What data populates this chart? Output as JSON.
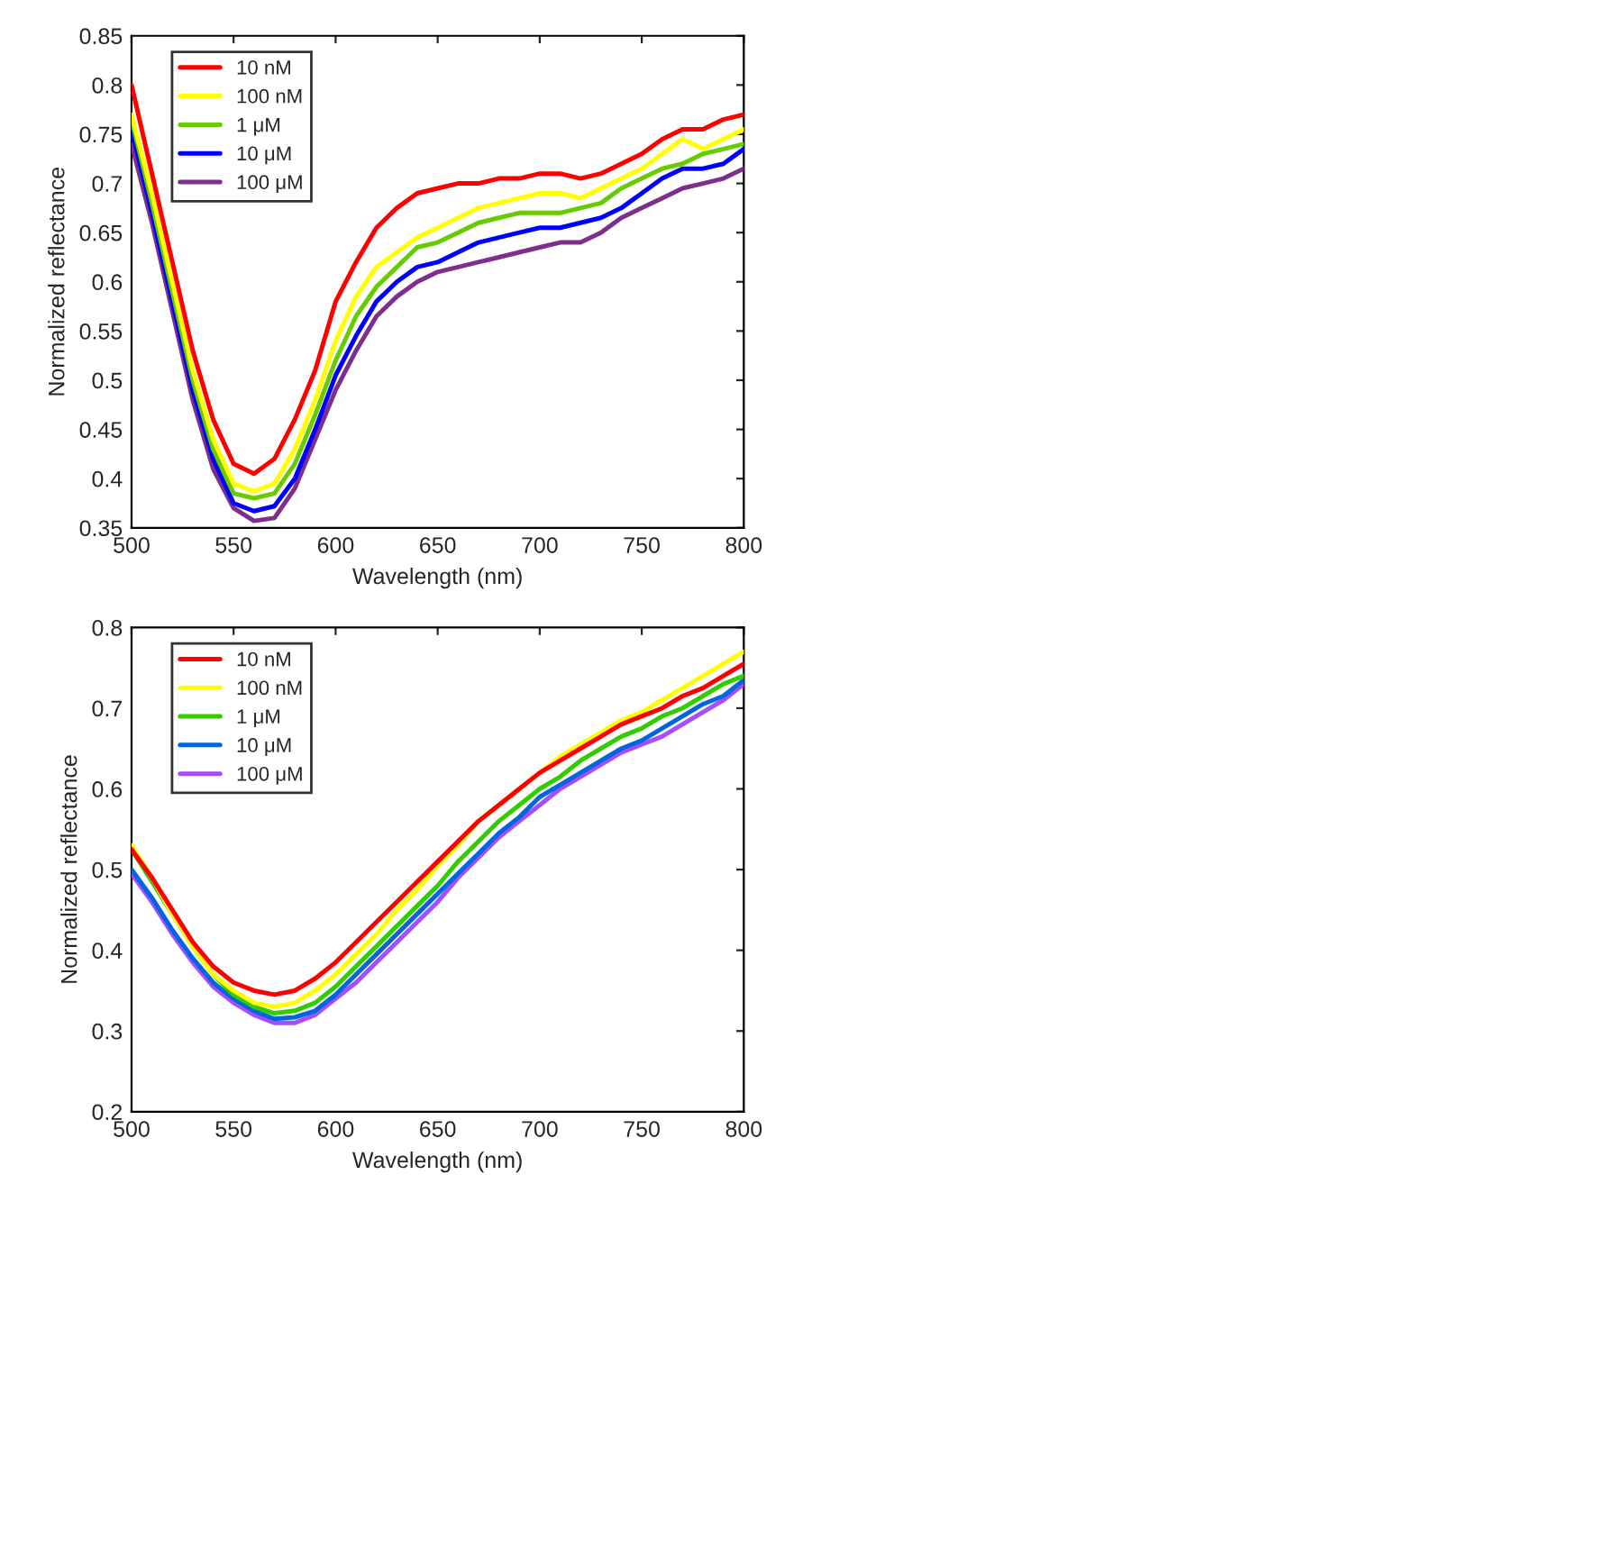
{
  "chart_data": [
    {
      "type": "line",
      "xlabel": "Wavelength (nm)",
      "ylabel": "Normalized reflectance",
      "xlim": [
        500,
        800
      ],
      "xticks": [
        500,
        550,
        600,
        650,
        700,
        750,
        800
      ],
      "ylim": [
        0.35,
        0.85
      ],
      "yticks": [
        0.35,
        0.4,
        0.45,
        0.5,
        0.55,
        0.6,
        0.65,
        0.7,
        0.75,
        0.8,
        0.85
      ],
      "legend": "top left",
      "grid": false,
      "x": [
        500,
        510,
        520,
        530,
        540,
        550,
        560,
        570,
        580,
        590,
        600,
        610,
        620,
        630,
        640,
        650,
        660,
        670,
        680,
        690,
        700,
        710,
        720,
        730,
        740,
        750,
        760,
        770,
        780,
        790,
        800
      ],
      "series": [
        {
          "name": "10 nM",
          "color": "#ff0000",
          "values": [
            0.8,
            0.71,
            0.62,
            0.53,
            0.46,
            0.415,
            0.405,
            0.42,
            0.46,
            0.51,
            0.58,
            0.62,
            0.655,
            0.675,
            0.69,
            0.695,
            0.7,
            0.7,
            0.705,
            0.705,
            0.71,
            0.71,
            0.705,
            0.71,
            0.72,
            0.73,
            0.745,
            0.755,
            0.755,
            0.765,
            0.77
          ]
        },
        {
          "name": "100 nM",
          "color": "#ffff00",
          "values": [
            0.77,
            0.69,
            0.6,
            0.51,
            0.44,
            0.395,
            0.387,
            0.395,
            0.43,
            0.48,
            0.54,
            0.585,
            0.615,
            0.63,
            0.645,
            0.655,
            0.665,
            0.675,
            0.68,
            0.685,
            0.69,
            0.69,
            0.685,
            0.695,
            0.705,
            0.715,
            0.73,
            0.745,
            0.735,
            0.745,
            0.755
          ]
        },
        {
          "name": "1 μM",
          "color": "#66cc00",
          "values": [
            0.765,
            0.68,
            0.59,
            0.5,
            0.43,
            0.385,
            0.38,
            0.385,
            0.415,
            0.465,
            0.52,
            0.565,
            0.595,
            0.615,
            0.635,
            0.64,
            0.65,
            0.66,
            0.665,
            0.67,
            0.67,
            0.67,
            0.675,
            0.68,
            0.695,
            0.705,
            0.715,
            0.72,
            0.73,
            0.735,
            0.74
          ]
        },
        {
          "name": "10 μM",
          "color": "#0000ff",
          "values": [
            0.755,
            0.67,
            0.58,
            0.49,
            0.42,
            0.375,
            0.367,
            0.372,
            0.4,
            0.45,
            0.505,
            0.545,
            0.58,
            0.6,
            0.615,
            0.62,
            0.63,
            0.64,
            0.645,
            0.65,
            0.655,
            0.655,
            0.66,
            0.665,
            0.675,
            0.69,
            0.705,
            0.715,
            0.715,
            0.72,
            0.735
          ]
        },
        {
          "name": "100 μM",
          "color": "#7e2f8e",
          "values": [
            0.74,
            0.66,
            0.57,
            0.48,
            0.41,
            0.37,
            0.357,
            0.36,
            0.39,
            0.44,
            0.49,
            0.53,
            0.565,
            0.585,
            0.6,
            0.61,
            0.615,
            0.62,
            0.625,
            0.63,
            0.635,
            0.64,
            0.64,
            0.65,
            0.665,
            0.675,
            0.685,
            0.695,
            0.7,
            0.705,
            0.715
          ]
        }
      ]
    },
    {
      "type": "line",
      "xlabel": "Wavelength (nm)",
      "ylabel": "Normalized reflectance",
      "xlim": [
        500,
        800
      ],
      "xticks": [
        500,
        550,
        600,
        650,
        700,
        750,
        800
      ],
      "ylim": [
        0.2,
        0.8
      ],
      "yticks": [
        0.2,
        0.3,
        0.4,
        0.5,
        0.6,
        0.7,
        0.8
      ],
      "legend": "top left",
      "grid": false,
      "x": [
        500,
        510,
        520,
        530,
        540,
        550,
        560,
        570,
        580,
        590,
        600,
        610,
        620,
        630,
        640,
        650,
        660,
        670,
        680,
        690,
        700,
        710,
        720,
        730,
        740,
        750,
        760,
        770,
        780,
        790,
        800
      ],
      "series": [
        {
          "name": "10 nM",
          "color": "#ff0000",
          "values": [
            0.525,
            0.49,
            0.45,
            0.41,
            0.38,
            0.36,
            0.35,
            0.345,
            0.35,
            0.365,
            0.385,
            0.41,
            0.435,
            0.46,
            0.485,
            0.51,
            0.535,
            0.56,
            0.58,
            0.6,
            0.62,
            0.635,
            0.65,
            0.665,
            0.68,
            0.69,
            0.7,
            0.715,
            0.725,
            0.74,
            0.755
          ]
        },
        {
          "name": "100 nM",
          "color": "#ffff00",
          "values": [
            0.53,
            0.49,
            0.445,
            0.405,
            0.37,
            0.35,
            0.335,
            0.33,
            0.335,
            0.35,
            0.37,
            0.395,
            0.42,
            0.45,
            0.475,
            0.505,
            0.53,
            0.56,
            0.58,
            0.6,
            0.62,
            0.64,
            0.655,
            0.67,
            0.685,
            0.695,
            0.71,
            0.725,
            0.74,
            0.755,
            0.77
          ]
        },
        {
          "name": "1 μM",
          "color": "#33cc00",
          "values": [
            0.525,
            0.485,
            0.445,
            0.405,
            0.37,
            0.345,
            0.33,
            0.322,
            0.325,
            0.335,
            0.355,
            0.38,
            0.405,
            0.43,
            0.455,
            0.48,
            0.51,
            0.535,
            0.56,
            0.58,
            0.6,
            0.615,
            0.635,
            0.65,
            0.665,
            0.675,
            0.69,
            0.7,
            0.715,
            0.73,
            0.74
          ]
        },
        {
          "name": "10 μM",
          "color": "#0066dd",
          "values": [
            0.5,
            0.465,
            0.425,
            0.39,
            0.36,
            0.34,
            0.325,
            0.315,
            0.317,
            0.325,
            0.345,
            0.37,
            0.395,
            0.42,
            0.445,
            0.47,
            0.495,
            0.52,
            0.545,
            0.565,
            0.59,
            0.605,
            0.62,
            0.635,
            0.65,
            0.66,
            0.675,
            0.69,
            0.705,
            0.715,
            0.735
          ]
        },
        {
          "name": "100 μM",
          "color": "#a64dff",
          "values": [
            0.495,
            0.46,
            0.42,
            0.385,
            0.355,
            0.335,
            0.32,
            0.31,
            0.31,
            0.32,
            0.34,
            0.36,
            0.385,
            0.41,
            0.435,
            0.46,
            0.49,
            0.515,
            0.54,
            0.56,
            0.58,
            0.6,
            0.615,
            0.63,
            0.645,
            0.655,
            0.665,
            0.68,
            0.695,
            0.71,
            0.73
          ]
        }
      ]
    }
  ]
}
